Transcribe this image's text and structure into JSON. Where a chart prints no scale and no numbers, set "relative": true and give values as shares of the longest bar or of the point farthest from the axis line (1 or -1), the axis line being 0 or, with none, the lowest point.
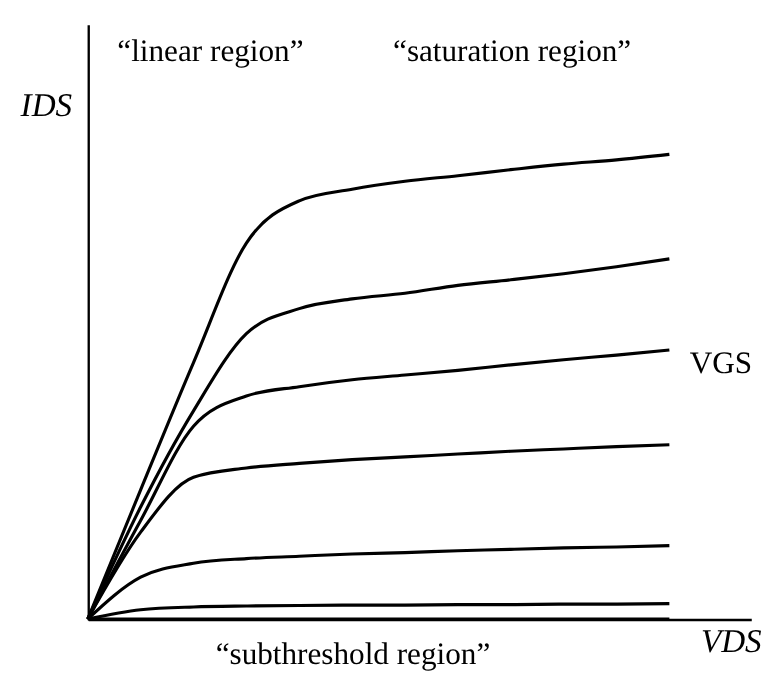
{
  "chart_data": {
    "type": "line",
    "relative": true,
    "xlabel": "VDS",
    "ylabel": "IDS",
    "categories": [
      null,
      null,
      null,
      null,
      null,
      null,
      null,
      null,
      null,
      null,
      null,
      null
    ],
    "series": [
      {
        "color": "#000000",
        "values": [
          0,
          0.278,
          0.552,
          0.809,
          0.9,
          0.925,
          0.942,
          0.954,
          0.967,
          0.979,
          0.988,
          1.0
        ]
      },
      {
        "color": "#000000",
        "values": [
          0,
          0.241,
          0.448,
          0.614,
          0.668,
          0.689,
          0.701,
          0.718,
          0.73,
          0.743,
          0.758,
          0.775
        ]
      },
      {
        "color": "#000000",
        "values": [
          0,
          0.212,
          0.415,
          0.48,
          0.5,
          0.515,
          0.525,
          0.535,
          0.547,
          0.558,
          0.568,
          0.579
        ]
      },
      {
        "color": "#000000",
        "values": [
          0,
          0.187,
          0.305,
          0.325,
          0.335,
          0.343,
          0.349,
          0.355,
          0.361,
          0.366,
          0.371,
          0.375
        ]
      },
      {
        "color": "#000000",
        "values": [
          0,
          0.09,
          0.12,
          0.13,
          0.135,
          0.14,
          0.143,
          0.147,
          0.15,
          0.153,
          0.155,
          0.158
        ]
      },
      {
        "color": "#000000",
        "values": [
          0,
          0.02,
          0.026,
          0.028,
          0.029,
          0.03,
          0.03,
          0.031,
          0.031,
          0.032,
          0.032,
          0.033
        ]
      },
      {
        "color": "#000000",
        "values": [
          0,
          0,
          0,
          0,
          0,
          0,
          0,
          0,
          0,
          0,
          0,
          0
        ]
      }
    ],
    "annotations": [
      "“linear region”",
      "“saturation region”",
      "“subthreshold region”",
      "VGS"
    ],
    "grid": false,
    "marker": "none",
    "line_style": "solid",
    "tick_labels": false
  }
}
